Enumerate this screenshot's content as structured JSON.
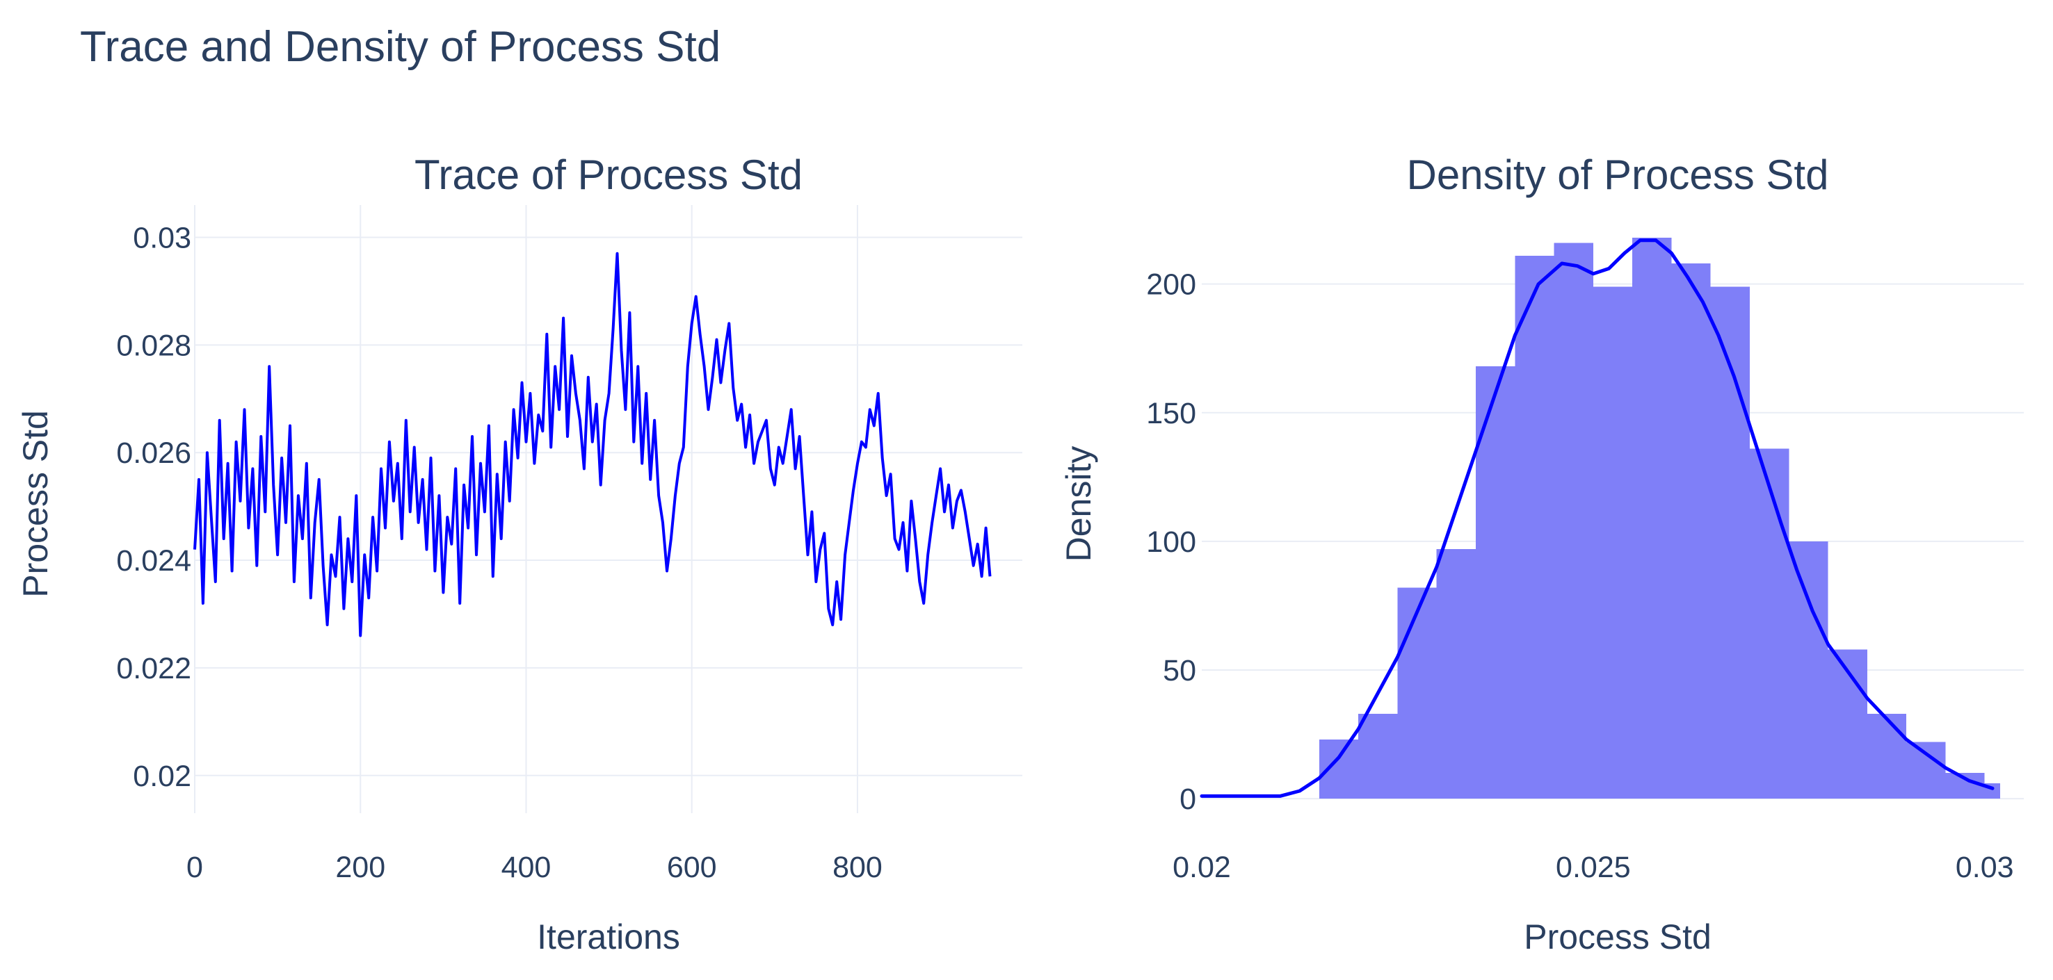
{
  "figure": {
    "title": "Trace and Density of Process Std"
  },
  "colors": {
    "line": "#0000ff",
    "bars": "#7f7ff8",
    "grid": "#e9edf5",
    "text": "#2a3f5f"
  },
  "chart_data": [
    {
      "type": "line",
      "title": "Trace of Process Std",
      "xlabel": "Iterations",
      "ylabel": "Process Std",
      "xlim": [
        0,
        999
      ],
      "ylim": [
        0.0193,
        0.0306
      ],
      "xticks": [
        {
          "value": 0,
          "label": "0"
        },
        {
          "value": 200,
          "label": "200"
        },
        {
          "value": 400,
          "label": "400"
        },
        {
          "value": 600,
          "label": "600"
        },
        {
          "value": 800,
          "label": "800"
        }
      ],
      "yticks": [
        {
          "value": 0.02,
          "label": "0.02"
        },
        {
          "value": 0.022,
          "label": "0.022"
        },
        {
          "value": 0.024,
          "label": "0.024"
        },
        {
          "value": 0.026,
          "label": "0.026"
        },
        {
          "value": 0.028,
          "label": "0.028"
        },
        {
          "value": 0.03,
          "label": "0.03"
        }
      ],
      "grid": true,
      "series": [
        {
          "x_start": 0,
          "x_step": 5,
          "values": [
            0.0242,
            0.0255,
            0.0232,
            0.026,
            0.0248,
            0.0236,
            0.0266,
            0.0244,
            0.0258,
            0.0238,
            0.0262,
            0.0251,
            0.0268,
            0.0246,
            0.0257,
            0.0239,
            0.0263,
            0.0249,
            0.0276,
            0.0254,
            0.0241,
            0.0259,
            0.0247,
            0.0265,
            0.0236,
            0.0252,
            0.0244,
            0.0258,
            0.0233,
            0.0247,
            0.0255,
            0.0239,
            0.0228,
            0.0241,
            0.0237,
            0.0248,
            0.0231,
            0.0244,
            0.0236,
            0.0252,
            0.0226,
            0.0241,
            0.0233,
            0.0248,
            0.0238,
            0.0257,
            0.0246,
            0.0262,
            0.0251,
            0.0258,
            0.0244,
            0.0266,
            0.0249,
            0.0261,
            0.0247,
            0.0255,
            0.0242,
            0.0259,
            0.0238,
            0.0252,
            0.0234,
            0.0248,
            0.0243,
            0.0257,
            0.0232,
            0.0254,
            0.0246,
            0.0263,
            0.0241,
            0.0258,
            0.0249,
            0.0265,
            0.0237,
            0.0256,
            0.0244,
            0.0262,
            0.0251,
            0.0268,
            0.0259,
            0.0273,
            0.0262,
            0.0271,
            0.0258,
            0.0267,
            0.0264,
            0.0282,
            0.0261,
            0.0276,
            0.0268,
            0.0285,
            0.0263,
            0.0278,
            0.0271,
            0.0266,
            0.0257,
            0.0274,
            0.0262,
            0.0269,
            0.0254,
            0.0266,
            0.0271,
            0.0283,
            0.0297,
            0.0279,
            0.0268,
            0.0286,
            0.0262,
            0.0276,
            0.0258,
            0.0271,
            0.0255,
            0.0266,
            0.0252,
            0.0247,
            0.0238,
            0.0244,
            0.0252,
            0.0258,
            0.0261,
            0.0276,
            0.0284,
            0.0289,
            0.0282,
            0.0276,
            0.0268,
            0.0274,
            0.0281,
            0.0273,
            0.0279,
            0.0284,
            0.0272,
            0.0266,
            0.0269,
            0.0261,
            0.0267,
            0.0258,
            0.0262,
            0.0264,
            0.0266,
            0.0257,
            0.0254,
            0.0261,
            0.0258,
            0.0263,
            0.0268,
            0.0257,
            0.0263,
            0.0252,
            0.0241,
            0.0249,
            0.0236,
            0.0242,
            0.0245,
            0.0231,
            0.0228,
            0.0236,
            0.0229,
            0.0241,
            0.0247,
            0.0253,
            0.0258,
            0.0262,
            0.0261,
            0.0268,
            0.0265,
            0.0271,
            0.0259,
            0.0252,
            0.0256,
            0.0244,
            0.0242,
            0.0247,
            0.0238,
            0.0251,
            0.0244,
            0.0236,
            0.0232,
            0.0241,
            0.0247,
            0.0252,
            0.0257,
            0.0249,
            0.0254,
            0.0246,
            0.0251,
            0.0253,
            0.0249,
            0.0244,
            0.0239,
            0.0243,
            0.0237,
            0.0246,
            0.0237
          ]
        }
      ]
    },
    {
      "type": "bar",
      "title": "Density of Process Std",
      "xlabel": "Process Std",
      "ylabel": "Density",
      "xlim": [
        0.02,
        0.0305
      ],
      "ylim": [
        -7,
        228
      ],
      "xticks": [
        {
          "value": 0.02,
          "label": "0.02"
        },
        {
          "value": 0.025,
          "label": "0.025"
        },
        {
          "value": 0.03,
          "label": "0.03"
        }
      ],
      "yticks": [
        {
          "value": 0,
          "label": "0"
        },
        {
          "value": 50,
          "label": "50"
        },
        {
          "value": 100,
          "label": "100"
        },
        {
          "value": 150,
          "label": "150"
        },
        {
          "value": 200,
          "label": "200"
        }
      ],
      "grid": true,
      "bin_edges": [
        0.0215,
        0.022,
        0.0225,
        0.023,
        0.0235,
        0.024,
        0.0245,
        0.025,
        0.0255,
        0.026,
        0.0265,
        0.027,
        0.0275,
        0.028,
        0.0285,
        0.029,
        0.0295,
        0.03,
        0.0302
      ],
      "values": [
        23,
        33,
        82,
        97,
        168,
        211,
        216,
        199,
        218,
        208,
        199,
        136,
        100,
        58,
        33,
        22,
        10,
        6
      ],
      "kde": {
        "x": [
          0.02,
          0.0205,
          0.021,
          0.02125,
          0.0215,
          0.02175,
          0.022,
          0.0225,
          0.023,
          0.0235,
          0.024,
          0.0243,
          0.0246,
          0.0248,
          0.025,
          0.0252,
          0.0254,
          0.0256,
          0.0258,
          0.026,
          0.0262,
          0.0264,
          0.0266,
          0.0268,
          0.027,
          0.0272,
          0.0274,
          0.0276,
          0.0278,
          0.028,
          0.0285,
          0.029,
          0.0295,
          0.0298,
          0.0301
        ],
        "y": [
          1,
          1,
          1,
          3,
          8,
          16,
          27,
          55,
          90,
          135,
          180,
          200,
          208,
          207,
          204,
          206,
          212,
          217,
          217,
          212,
          203,
          193,
          180,
          164,
          145,
          126,
          107,
          89,
          73,
          60,
          39,
          23,
          12,
          7,
          4
        ]
      }
    }
  ]
}
